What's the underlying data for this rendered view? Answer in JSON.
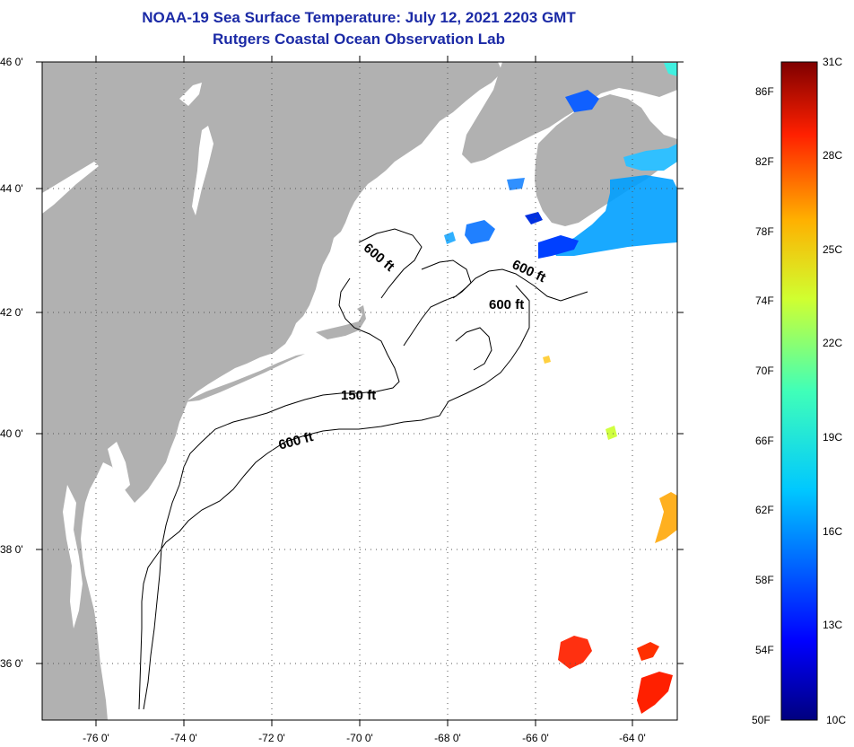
{
  "title": {
    "line1": "NOAA-19 Sea Surface Temperature:  July 12, 2021 2203 GMT",
    "line2": "Rutgers Coastal Ocean Observation Lab"
  },
  "map": {
    "lat_labels": [
      "46 0'",
      "44 0'",
      "42 0'",
      "40 0'",
      "38 0'",
      "36 0'"
    ],
    "lon_labels": [
      "-76 0'",
      "-74 0'",
      "-72 0'",
      "-70 0'",
      "-68 0'",
      "-66 0'",
      "-64 0'"
    ],
    "contour_labels": [
      "600 ft",
      "600 ft",
      "600 ft",
      "150 ft",
      "600 ft"
    ],
    "colors": {
      "land": "#b1b1b1",
      "water": "#ffffff",
      "grid": "#555555"
    }
  },
  "colorbar": {
    "fahrenheit": [
      "86F",
      "82F",
      "78F",
      "74F",
      "70F",
      "66F",
      "62F",
      "58F",
      "54F",
      "50F"
    ],
    "celsius": [
      "31C",
      "28C",
      "25C",
      "22C",
      "19C",
      "16C",
      "13C",
      "10C"
    ]
  }
}
